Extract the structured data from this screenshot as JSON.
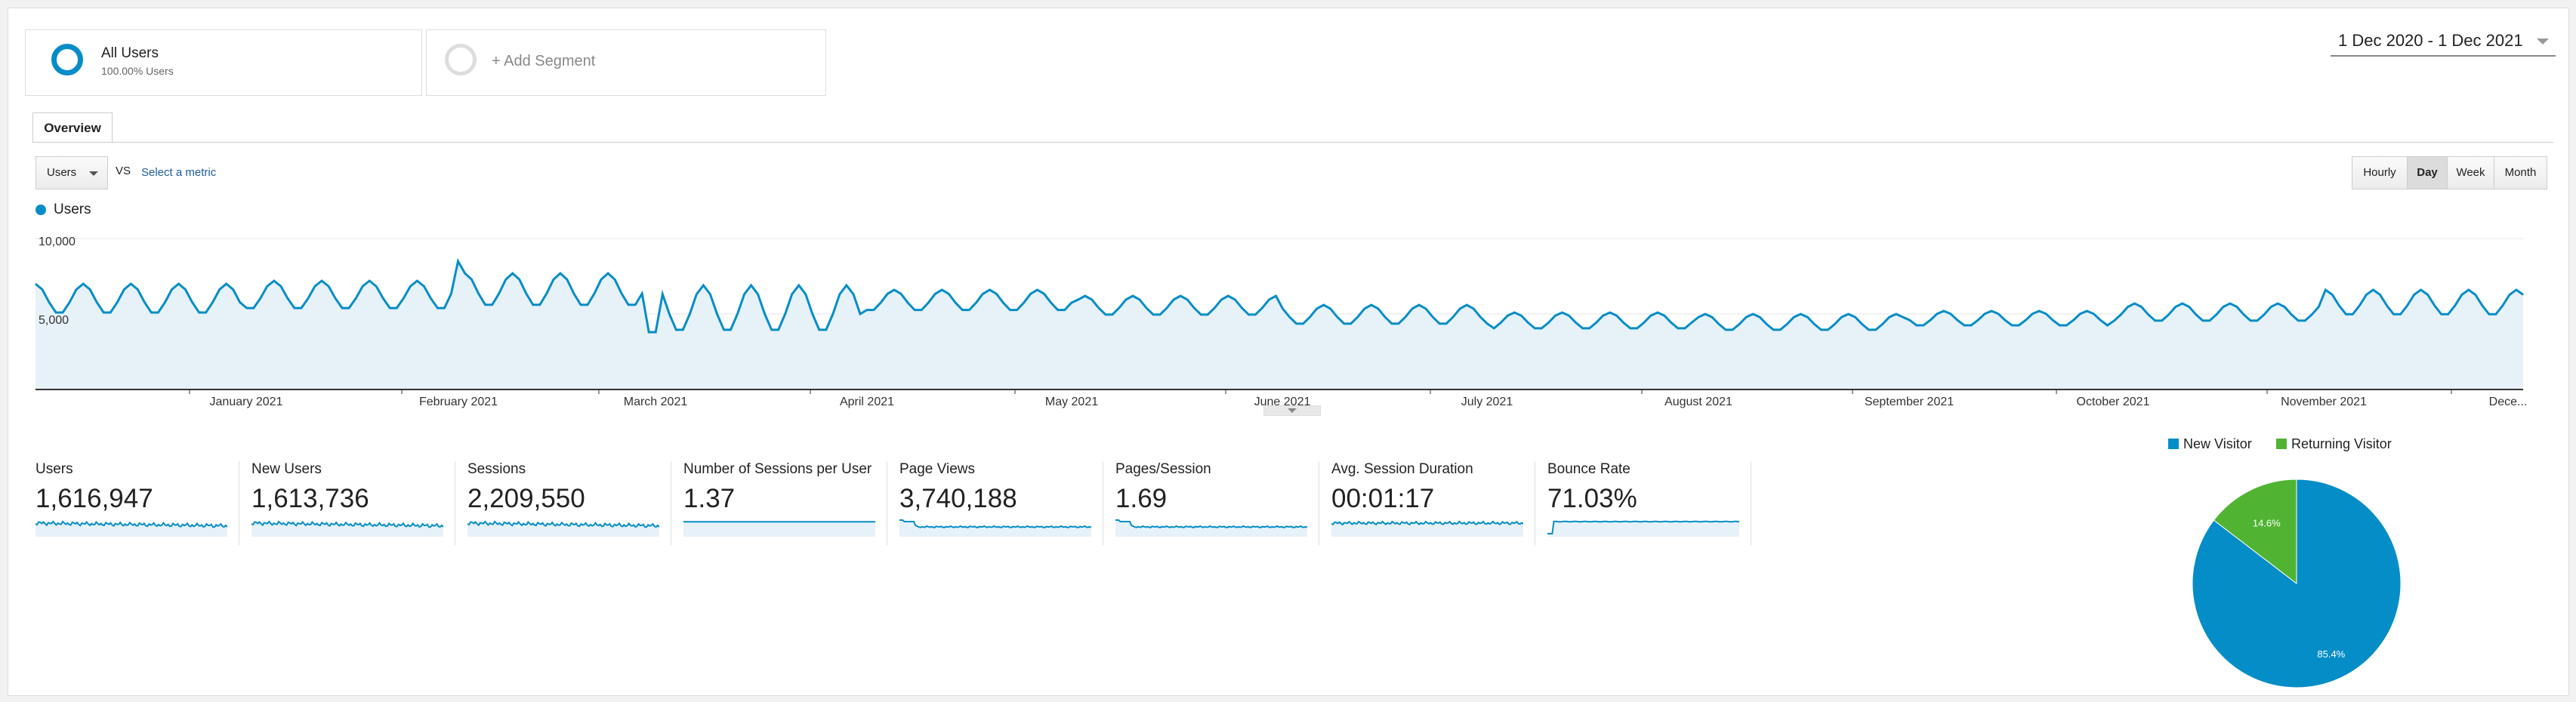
{
  "segments": {
    "all_users": {
      "title": "All Users",
      "subtitle": "100.00% Users"
    },
    "add_segment": "+ Add Segment"
  },
  "date_range": "1 Dec 2020 - 1 Dec 2021",
  "tabs": [
    {
      "label": "Overview"
    }
  ],
  "metric_selector": {
    "value": "Users",
    "vs": "VS",
    "select_metric": "Select a metric"
  },
  "granularity": [
    {
      "label": "Hourly",
      "active": false
    },
    {
      "label": "Day",
      "active": true
    },
    {
      "label": "Week",
      "active": false
    },
    {
      "label": "Month",
      "active": false
    }
  ],
  "colors": {
    "primary": "#058dc7",
    "area_fill": "#e6f1f8",
    "returning": "#50b432"
  },
  "chart_data": [
    {
      "type": "area",
      "series": [
        {
          "name": "Users"
        }
      ],
      "ytick_labels": [
        "10,000",
        "5,000"
      ],
      "ylim": [
        0,
        10000
      ],
      "xtick_labels": [
        "January 2021",
        "February 2021",
        "March 2021",
        "April 2021",
        "May 2021",
        "June 2021",
        "July 2021",
        "August 2021",
        "September 2021",
        "October 2021",
        "November 2021",
        "Dece..."
      ],
      "x_range": [
        "1 Dec 2020",
        "1 Dec 2021"
      ],
      "weekly_pattern_values": [
        {
          "x": "Dec 2020",
          "y": [
            7000,
            5000
          ]
        },
        {
          "x": "Jan 2021",
          "y": [
            7200,
            5300
          ]
        },
        {
          "x": "Feb 2021",
          "y": [
            7700,
            5500
          ]
        },
        {
          "x": "Mar 2021",
          "y": [
            6900,
            3800
          ]
        },
        {
          "x": "Apr 2021",
          "y": [
            6600,
            5200
          ]
        },
        {
          "x": "May 2021",
          "y": [
            6200,
            4900
          ]
        },
        {
          "x": "Jun 2021",
          "y": [
            5600,
            4300
          ]
        },
        {
          "x": "Jul 2021",
          "y": [
            5100,
            4000
          ]
        },
        {
          "x": "Aug 2021",
          "y": [
            5000,
            3900
          ]
        },
        {
          "x": "Sep 2021",
          "y": [
            5200,
            4200
          ]
        },
        {
          "x": "Oct 2021",
          "y": [
            5700,
            4500
          ]
        },
        {
          "x": "Nov 2021",
          "y": [
            6600,
            4900
          ]
        }
      ],
      "grid": true
    },
    {
      "type": "pie",
      "legend": [
        "New Visitor",
        "Returning Visitor"
      ],
      "slices": [
        {
          "name": "New Visitor",
          "value": 85.4,
          "label": "85.4%",
          "color": "#058dc7"
        },
        {
          "name": "Returning Visitor",
          "value": 14.6,
          "label": "14.6%",
          "color": "#50b432"
        }
      ],
      "legend_position": "top"
    }
  ],
  "metrics": [
    {
      "label": "Users",
      "value": "1,616,947",
      "spark": "noisy"
    },
    {
      "label": "New Users",
      "value": "1,613,736",
      "spark": "noisy"
    },
    {
      "label": "Sessions",
      "value": "2,209,550",
      "spark": "noisy"
    },
    {
      "label": "Number of Sessions per User",
      "value": "1.37",
      "spark": "flat"
    },
    {
      "label": "Page Views",
      "value": "3,740,188",
      "spark": "drop"
    },
    {
      "label": "Pages/Session",
      "value": "1.69",
      "spark": "drop"
    },
    {
      "label": "Avg. Session Duration",
      "value": "00:01:17",
      "spark": "noisy-low"
    },
    {
      "label": "Bounce Rate",
      "value": "71.03%",
      "spark": "rise"
    }
  ]
}
